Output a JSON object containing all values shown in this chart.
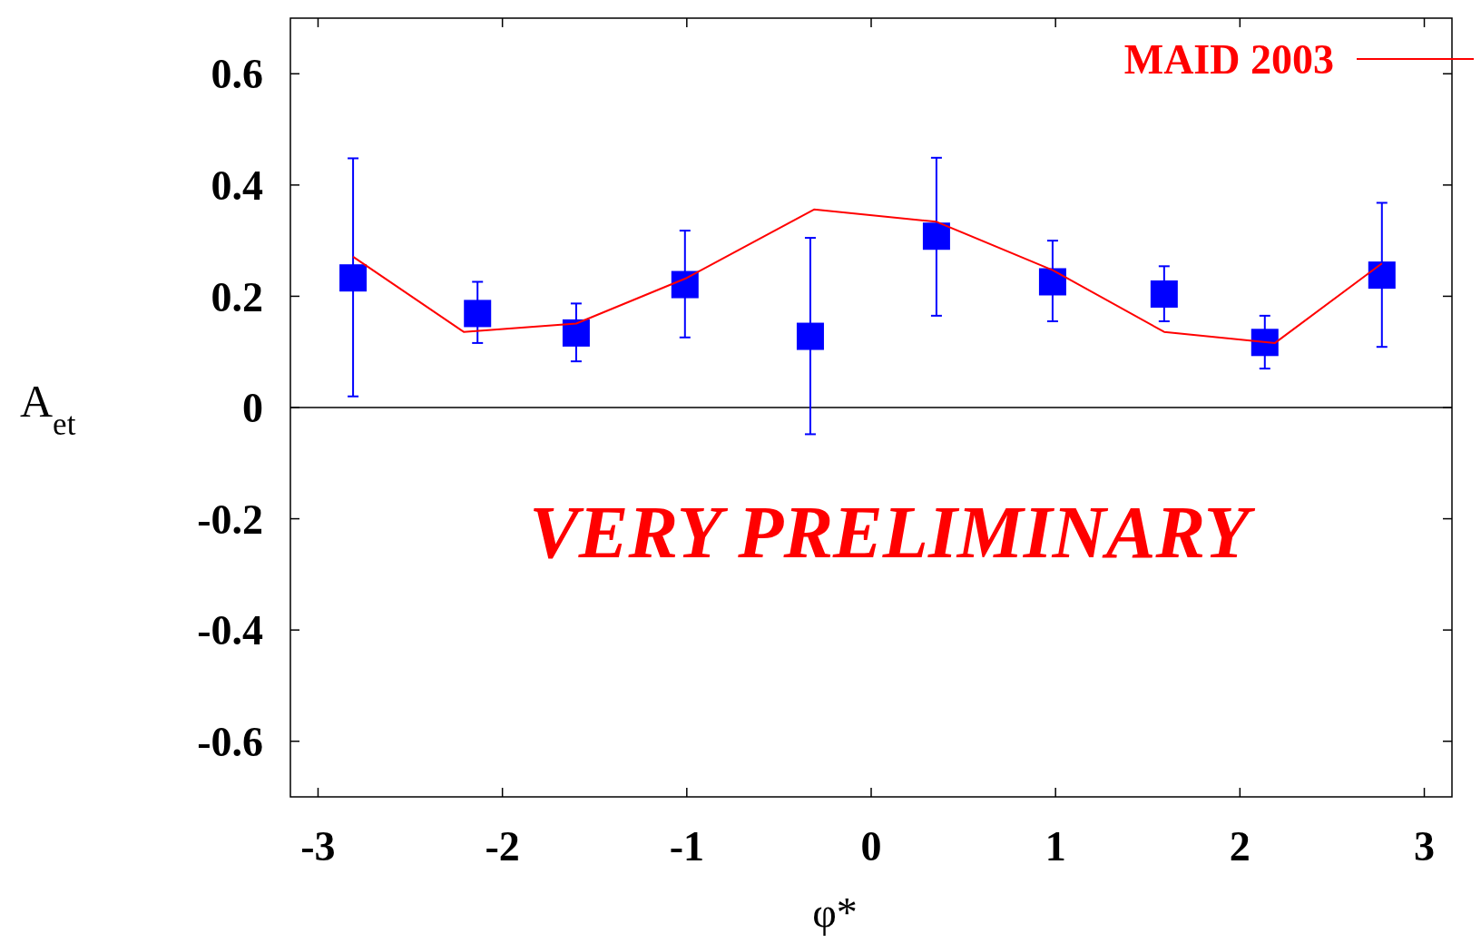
{
  "chart_data": {
    "type": "scatter",
    "xlabel": "φ*",
    "ylabel": "A$_{et}$",
    "xlim": [
      -3.15,
      3.15
    ],
    "ylim": [
      -0.7,
      0.7
    ],
    "xticks": [
      -3,
      -2,
      -1,
      0,
      1,
      2,
      3
    ],
    "yticks": [
      {
        "value": -0.6,
        "label": "-0.6"
      },
      {
        "value": -0.4,
        "label": "-0.4"
      },
      {
        "value": -0.2,
        "label": "-0.2"
      },
      0,
      0.2,
      0.4,
      0.6
    ],
    "grid": false,
    "legend": "top right",
    "annotations": [
      "VERY PRELIMINARY"
    ],
    "ref_lines": [
      {
        "axis": "y",
        "value": 0,
        "color": "#000000"
      }
    ],
    "series": [
      {
        "color": "#0000ff",
        "marker": "square",
        "x": [
          -2.81,
          -2.135,
          -1.6,
          -1.01,
          -0.33,
          0.354,
          0.984,
          1.589,
          2.135,
          2.77
        ],
        "values": [
          0.233,
          0.169,
          0.134,
          0.221,
          0.128,
          0.308,
          0.226,
          0.204,
          0.117,
          0.238
        ],
        "errors": [
          [
            0.02,
            0.448
          ],
          [
            0.116,
            0.226
          ],
          [
            0.083,
            0.187
          ],
          [
            0.126,
            0.318
          ],
          [
            -0.048,
            0.305
          ],
          [
            0.165,
            0.449
          ],
          [
            0.155,
            0.3
          ],
          [
            0.155,
            0.254
          ],
          [
            0.07,
            0.165
          ],
          [
            0.109,
            0.368
          ]
        ]
      },
      {
        "type": "line",
        "name": "MAID 2003",
        "color": "#ff0000",
        "line_style": "solid",
        "x": [
          -2.81,
          -2.21,
          -1.6,
          -1.0,
          -0.31,
          0.354,
          0.984,
          1.589,
          2.19,
          2.77
        ],
        "values": [
          0.271,
          0.136,
          0.151,
          0.233,
          0.356,
          0.334,
          0.247,
          0.136,
          0.116,
          0.259
        ]
      }
    ]
  }
}
